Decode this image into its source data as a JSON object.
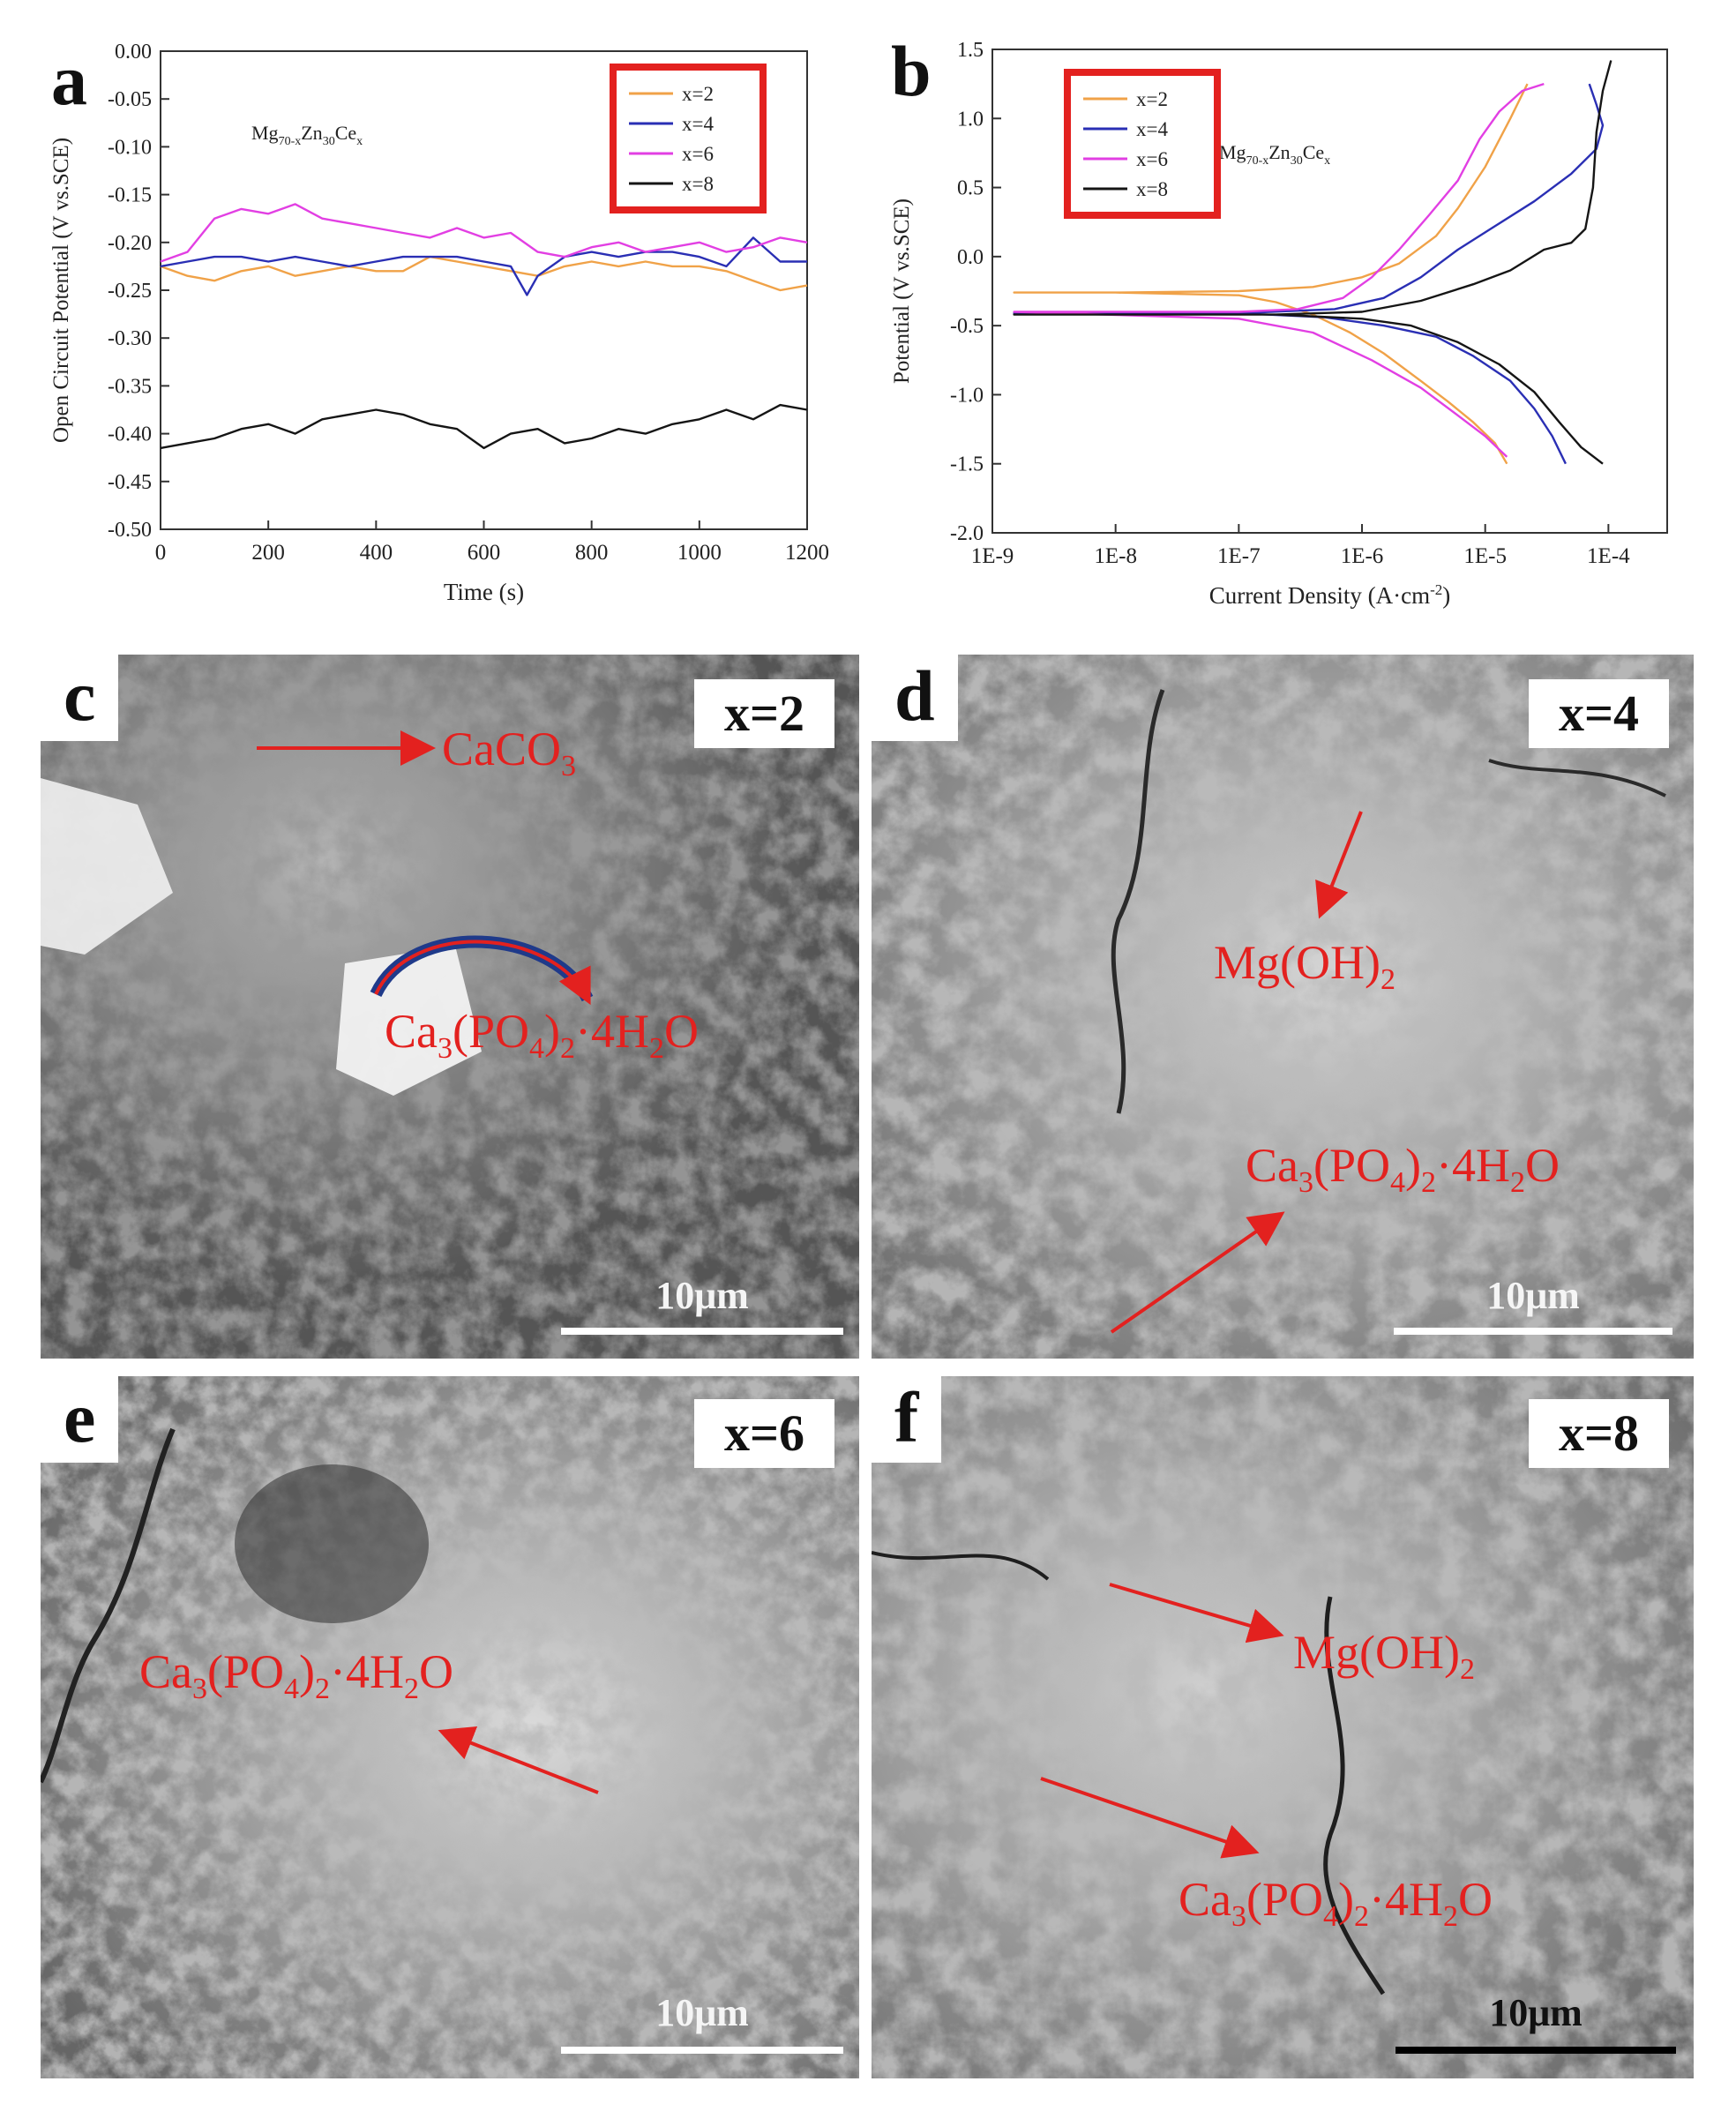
{
  "panel_letters": {
    "a": "a",
    "b": "b",
    "c": "c",
    "d": "d",
    "e": "e",
    "f": "f"
  },
  "colors": {
    "x2": "#f0a248",
    "x4": "#2a2fb4",
    "x6": "#e23fe3",
    "x8": "#151515",
    "legend_box": "#e3211f",
    "label_red": "#e3211f"
  },
  "chart_data": [
    {
      "panel": "a",
      "type": "line",
      "xlabel": "Time (s)",
      "ylabel": "Open Circuit Potential (V vs.SCE)",
      "xlim": [
        0,
        1200
      ],
      "ylim": [
        -0.5,
        0.0
      ],
      "xticks": [
        0,
        200,
        400,
        600,
        800,
        1000,
        1200
      ],
      "yticks": [
        0.0,
        -0.05,
        -0.1,
        -0.15,
        -0.2,
        -0.25,
        -0.3,
        -0.35,
        -0.4,
        -0.45,
        -0.5
      ],
      "ytick_labels": [
        "0.00",
        "-0.05",
        "-0.10",
        "-0.15",
        "-0.20",
        "-0.25",
        "-0.30",
        "-0.35",
        "-0.40",
        "-0.45",
        "-0.50"
      ],
      "annotation": {
        "base": "Mg",
        "s1": "70-x",
        "mid": "Zn",
        "s2": "30",
        "end": "Ce",
        "s3": "x"
      },
      "legend": {
        "placement": "top-right",
        "entries": [
          "x=2",
          "x=4",
          "x=6",
          "x=8"
        ]
      },
      "series": [
        {
          "name": "x=2",
          "x": [
            0,
            50,
            100,
            150,
            200,
            250,
            300,
            350,
            400,
            450,
            500,
            550,
            600,
            650,
            700,
            750,
            800,
            850,
            900,
            950,
            1000,
            1050,
            1100,
            1150,
            1200
          ],
          "y": [
            -0.225,
            -0.235,
            -0.24,
            -0.23,
            -0.225,
            -0.235,
            -0.23,
            -0.225,
            -0.23,
            -0.23,
            -0.215,
            -0.22,
            -0.225,
            -0.23,
            -0.235,
            -0.225,
            -0.22,
            -0.225,
            -0.22,
            -0.225,
            -0.225,
            -0.23,
            -0.24,
            -0.25,
            -0.245
          ]
        },
        {
          "name": "x=4",
          "x": [
            0,
            50,
            100,
            150,
            200,
            250,
            300,
            350,
            400,
            450,
            500,
            550,
            600,
            650,
            680,
            700,
            750,
            800,
            850,
            900,
            950,
            1000,
            1050,
            1100,
            1150,
            1200
          ],
          "y": [
            -0.225,
            -0.22,
            -0.215,
            -0.215,
            -0.22,
            -0.215,
            -0.22,
            -0.225,
            -0.22,
            -0.215,
            -0.215,
            -0.215,
            -0.22,
            -0.225,
            -0.255,
            -0.235,
            -0.215,
            -0.21,
            -0.215,
            -0.21,
            -0.21,
            -0.215,
            -0.225,
            -0.195,
            -0.22,
            -0.22
          ]
        },
        {
          "name": "x=6",
          "x": [
            0,
            50,
            100,
            150,
            200,
            250,
            300,
            350,
            400,
            450,
            500,
            550,
            600,
            650,
            700,
            750,
            800,
            850,
            900,
            950,
            1000,
            1050,
            1100,
            1150,
            1200
          ],
          "y": [
            -0.22,
            -0.21,
            -0.175,
            -0.165,
            -0.17,
            -0.16,
            -0.175,
            -0.18,
            -0.185,
            -0.19,
            -0.195,
            -0.185,
            -0.195,
            -0.19,
            -0.21,
            -0.215,
            -0.205,
            -0.2,
            -0.21,
            -0.205,
            -0.2,
            -0.21,
            -0.205,
            -0.195,
            -0.2
          ]
        },
        {
          "name": "x=8",
          "x": [
            0,
            50,
            100,
            150,
            200,
            250,
            300,
            350,
            400,
            450,
            500,
            550,
            600,
            650,
            700,
            750,
            800,
            850,
            900,
            950,
            1000,
            1050,
            1100,
            1150,
            1200
          ],
          "y": [
            -0.415,
            -0.41,
            -0.405,
            -0.395,
            -0.39,
            -0.4,
            -0.385,
            -0.38,
            -0.375,
            -0.38,
            -0.39,
            -0.395,
            -0.415,
            -0.4,
            -0.395,
            -0.41,
            -0.405,
            -0.395,
            -0.4,
            -0.39,
            -0.385,
            -0.375,
            -0.385,
            -0.37,
            -0.375
          ]
        }
      ]
    },
    {
      "panel": "b",
      "type": "line",
      "xlabel_base": "Current Density (A·cm",
      "xlabel_sup": "-2",
      "xlabel_end": ")",
      "ylabel": "Potential (V vs.SCE)",
      "x_scale": "log",
      "xlim": [
        1e-09,
        0.0003
      ],
      "ylim": [
        -2.0,
        1.5
      ],
      "xticks": [
        1e-09,
        1e-08,
        1e-07,
        1e-06,
        1e-05,
        0.0001
      ],
      "xtick_labels": [
        "1E-9",
        "1E-8",
        "1E-7",
        "1E-6",
        "1E-5",
        "1E-4"
      ],
      "yticks": [
        1.5,
        1.0,
        0.5,
        0.0,
        -0.5,
        -1.0,
        -1.5,
        -2.0
      ],
      "ytick_labels": [
        "1.5",
        "1.0",
        "0.5",
        "0.0",
        "-0.5",
        "-1.0",
        "-1.5",
        "-2.0"
      ],
      "annotation": {
        "base": "Mg",
        "s1": "70-x",
        "mid": "Zn",
        "s2": "30",
        "end": "Ce",
        "s3": "x"
      },
      "legend": {
        "placement": "top-left",
        "entries": [
          "x=2",
          "x=4",
          "x=6",
          "x=8"
        ]
      },
      "series": [
        {
          "name": "x=2",
          "x": [
            1.5e-05,
            1.2e-05,
            8e-06,
            5e-06,
            3e-06,
            1.5e-06,
            8e-07,
            4e-07,
            2e-07,
            1e-07,
            1e-08,
            1.5e-09,
            1e-08,
            1e-07,
            4e-07,
            1e-06,
            2e-06,
            4e-06,
            6e-06,
            1e-05,
            1.6e-05,
            2.2e-05
          ],
          "y": [
            -1.5,
            -1.35,
            -1.2,
            -1.05,
            -0.9,
            -0.7,
            -0.55,
            -0.42,
            -0.33,
            -0.28,
            -0.26,
            -0.26,
            -0.26,
            -0.25,
            -0.22,
            -0.15,
            -0.05,
            0.15,
            0.35,
            0.65,
            1.0,
            1.25
          ]
        },
        {
          "name": "x=4",
          "x": [
            4.5e-05,
            3.5e-05,
            2.5e-05,
            1.6e-05,
            8e-06,
            4e-06,
            1.5e-06,
            5e-07,
            1e-07,
            1.5e-09,
            1e-07,
            6e-07,
            1.5e-06,
            3e-06,
            6e-06,
            1.2e-05,
            2.5e-05,
            5e-05,
            8e-05,
            9e-05,
            8e-05,
            7e-05
          ],
          "y": [
            -1.5,
            -1.3,
            -1.1,
            -0.9,
            -0.72,
            -0.58,
            -0.5,
            -0.44,
            -0.41,
            -0.41,
            -0.41,
            -0.38,
            -0.3,
            -0.15,
            0.05,
            0.22,
            0.4,
            0.6,
            0.78,
            0.95,
            1.1,
            1.25
          ]
        },
        {
          "name": "x=6",
          "x": [
            1.5e-05,
            1e-05,
            6e-06,
            3e-06,
            1.2e-06,
            4e-07,
            1e-07,
            1.5e-09,
            1e-07,
            3e-07,
            7e-07,
            1.2e-06,
            2e-06,
            3.5e-06,
            6e-06,
            9e-06,
            1.3e-05,
            2e-05,
            3e-05
          ],
          "y": [
            -1.45,
            -1.3,
            -1.15,
            -0.95,
            -0.75,
            -0.55,
            -0.45,
            -0.4,
            -0.4,
            -0.38,
            -0.3,
            -0.15,
            0.05,
            0.3,
            0.55,
            0.85,
            1.05,
            1.2,
            1.25
          ]
        },
        {
          "name": "x=8",
          "x": [
            9e-05,
            6e-05,
            4e-05,
            2.5e-05,
            1.3e-05,
            6e-06,
            2.5e-06,
            1e-06,
            2e-07,
            1.5e-09,
            2e-07,
            1e-06,
            3e-06,
            8e-06,
            1.6e-05,
            3e-05,
            5e-05,
            6.5e-05,
            7.5e-05,
            8e-05,
            9e-05,
            0.000105
          ],
          "y": [
            -1.5,
            -1.38,
            -1.2,
            -0.98,
            -0.78,
            -0.62,
            -0.5,
            -0.45,
            -0.42,
            -0.42,
            -0.42,
            -0.4,
            -0.32,
            -0.2,
            -0.1,
            0.05,
            0.1,
            0.2,
            0.5,
            0.9,
            1.2,
            1.42
          ]
        }
      ]
    }
  ],
  "sem_panels": [
    {
      "panel": "c",
      "label": "x=2",
      "scale_bar": "10μm"
    },
    {
      "panel": "d",
      "label": "x=4",
      "scale_bar": "10μm"
    },
    {
      "panel": "e",
      "label": "x=6",
      "scale_bar": "10μm"
    },
    {
      "panel": "f",
      "label": "x=8",
      "scale_bar": "10μm"
    }
  ],
  "compounds": {
    "caco3": {
      "a": "CaCO",
      "b": "3"
    },
    "caphos": {
      "a": "Ca",
      "b": "3",
      "c": "(PO",
      "d": "4",
      "e": ")",
      "f": "2",
      "g": "·4H",
      "h": "2",
      "i": "O"
    },
    "mgoh": {
      "a": "Mg(OH)",
      "b": "2"
    }
  }
}
